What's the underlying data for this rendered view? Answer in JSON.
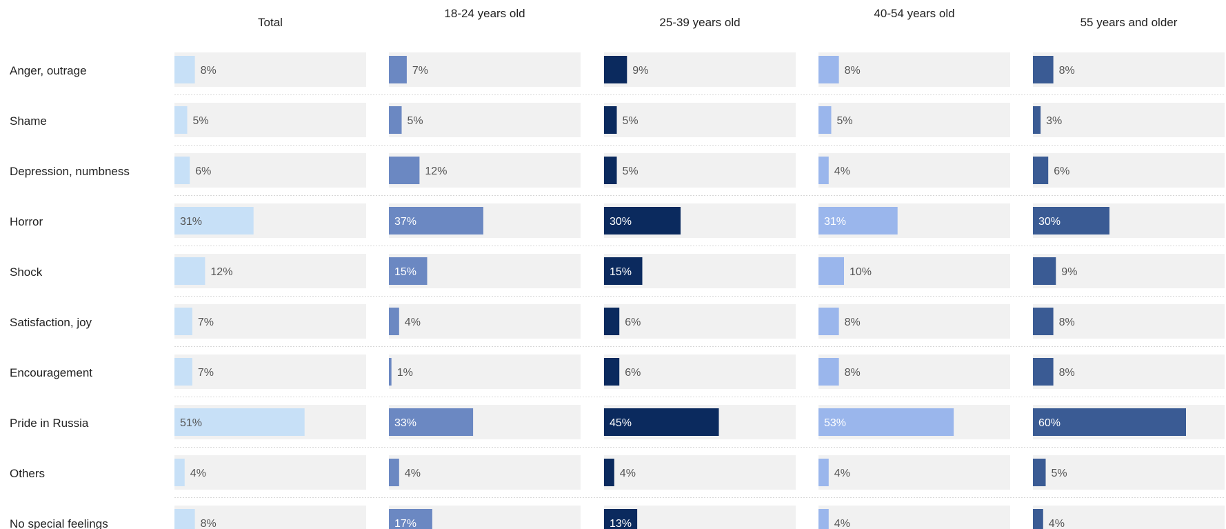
{
  "chart_data": {
    "type": "bar",
    "orientation": "horizontal",
    "layout": "small-multiples",
    "value_suffix": "%",
    "xlim": [
      0,
      60
    ],
    "categories": [
      "Anger, outrage",
      "Shame",
      "Depression,  numbness",
      "Horror",
      "Shock",
      "Satisfaction, joy",
      "Encouragement",
      "Pride in Russia",
      "Others",
      "No special feelings"
    ],
    "series": [
      {
        "name": "Total",
        "color": "#c7e0f7",
        "label_color": "#555555",
        "values": [
          8,
          5,
          6,
          31,
          12,
          7,
          7,
          51,
          4,
          8
        ]
      },
      {
        "name": "18-24 years old",
        "color": "#6b88c2",
        "label_color": "#ffffff",
        "values": [
          7,
          5,
          12,
          37,
          15,
          4,
          1,
          33,
          4,
          17
        ]
      },
      {
        "name": "25-39 years old",
        "color": "#0b2a5e",
        "label_color": "#ffffff",
        "values": [
          9,
          5,
          5,
          30,
          15,
          6,
          6,
          45,
          4,
          13
        ]
      },
      {
        "name": "40-54 years old",
        "color": "#9ab6ec",
        "label_color": "#ffffff",
        "values": [
          8,
          5,
          4,
          31,
          10,
          8,
          8,
          53,
          4,
          4
        ]
      },
      {
        "name": "55 years and older",
        "color": "#3a5b94",
        "label_color": "#ffffff",
        "values": [
          8,
          3,
          6,
          30,
          9,
          8,
          8,
          60,
          5,
          4
        ]
      }
    ],
    "track_color": "#f1f1f1",
    "label_outside_color": "#555555"
  }
}
